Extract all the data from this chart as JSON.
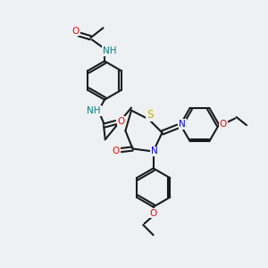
{
  "background_color": "#edf1f4",
  "figsize": [
    3.0,
    3.0
  ],
  "dpi": 100,
  "bond_color": "#1a1a1a",
  "bond_lw": 1.5,
  "atom_colors": {
    "N": "#0000ff",
    "NH": "#008080",
    "O": "#ff0000",
    "S": "#ccaa00",
    "C": "#1a1a1a"
  },
  "font_size": 7.5
}
